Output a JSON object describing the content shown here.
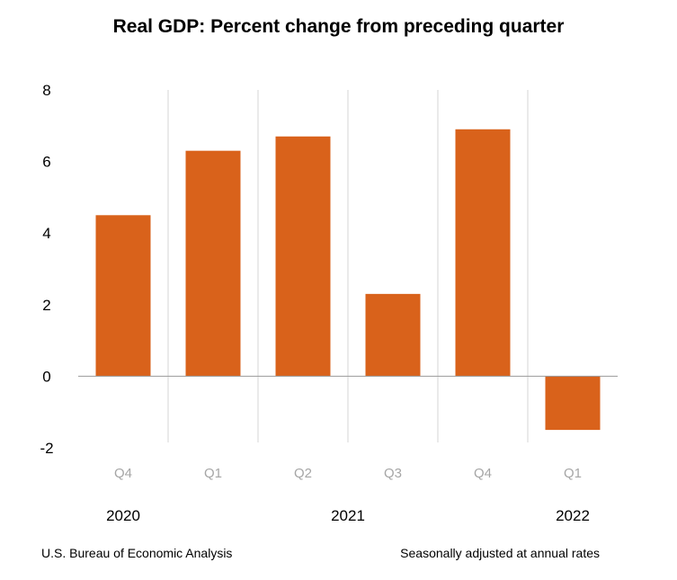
{
  "title": "Real GDP:  Percent change from preceding quarter",
  "footer": {
    "source": "U.S. Bureau of Economic Analysis",
    "note": "Seasonally adjusted at annual rates"
  },
  "colors": {
    "bar": "#D9621B",
    "axis": "#9a9a9a",
    "separator": "#d4d4d4",
    "quarter_label": "#a6a6a6",
    "text": "#000000"
  },
  "chart_data": {
    "type": "bar",
    "categories": [
      "Q4",
      "Q1",
      "Q2",
      "Q3",
      "Q4",
      "Q1"
    ],
    "groups": [
      {
        "label": "2020",
        "categories": [
          0
        ]
      },
      {
        "label": "2021",
        "categories": [
          1,
          2,
          3,
          4
        ]
      },
      {
        "label": "2022",
        "categories": [
          5
        ]
      }
    ],
    "values": [
      4.5,
      6.3,
      6.7,
      2.3,
      6.9,
      -1.5
    ],
    "title": "Real GDP:  Percent change from preceding quarter",
    "xlabel": "",
    "ylabel": "",
    "ylim": [
      -2,
      8
    ],
    "yticks": [
      "8",
      "6",
      "4",
      "2",
      "0",
      "-2"
    ],
    "grid": false,
    "legend": "none"
  }
}
